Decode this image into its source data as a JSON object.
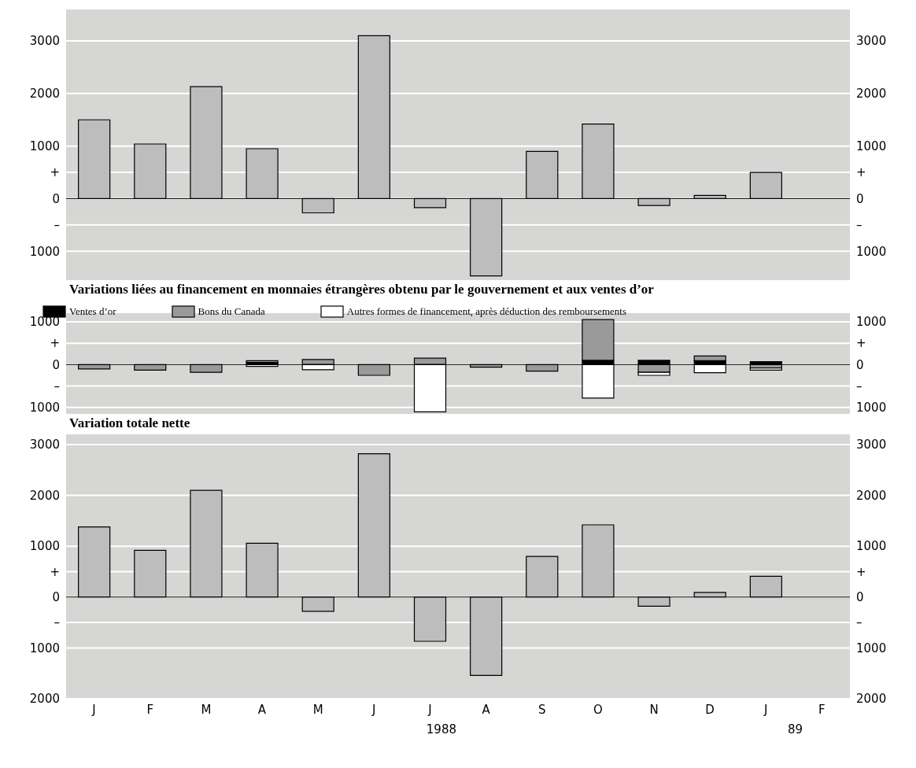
{
  "chart_data": [
    {
      "type": "bar",
      "categories": [
        null,
        null,
        null,
        null,
        null,
        null,
        null,
        null,
        null,
        null,
        null,
        null,
        null,
        null
      ],
      "series": [
        {
          "color": "#bdbdbd",
          "values": [
            1500,
            1040,
            2130,
            950,
            -270,
            3100,
            -170,
            -1470,
            900,
            1420,
            -130,
            60,
            500,
            null
          ]
        }
      ],
      "ylim": [
        -1550,
        3600
      ],
      "yticks": [
        {
          "value": -1000,
          "label": "1000"
        },
        {
          "value": -500,
          "label": "–"
        },
        0,
        {
          "value": 500,
          "label": "+"
        },
        1000,
        2000,
        3000
      ],
      "y2lim": [
        -1550,
        3600
      ],
      "y2ticks": [
        {
          "value": -1000,
          "label": "1000"
        },
        {
          "value": -500,
          "label": "–"
        },
        0,
        {
          "value": 500,
          "label": "+"
        },
        1000,
        2000,
        3000
      ],
      "grid": "y",
      "tick_labels": "y",
      "legend": false
    },
    {
      "type": "bar",
      "title": "Variations liées au financement en monnaies étrangères obtenu par le gouvernement et aux ventes d’or",
      "categories": [
        null,
        null,
        null,
        null,
        null,
        null,
        null,
        null,
        null,
        null,
        null,
        null,
        null,
        null
      ],
      "stacked": true,
      "series": [
        {
          "name": "Ventes d’or",
          "color": "#000000",
          "values": [
            0,
            0,
            0,
            50,
            0,
            0,
            0,
            0,
            0,
            100,
            100,
            90,
            70,
            null
          ]
        },
        {
          "name": "Bons du Canada",
          "color": "#9a9a9a",
          "values": [
            -100,
            -130,
            -180,
            40,
            120,
            -250,
            150,
            -60,
            -150,
            950,
            -180,
            110,
            -80,
            null
          ]
        },
        {
          "name": "Autres formes de financement, après déduction des remboursements",
          "color": "#ffffff",
          "values": [
            0,
            0,
            0,
            -40,
            -120,
            0,
            -1100,
            0,
            0,
            -780,
            -70,
            -190,
            -50,
            null
          ]
        }
      ],
      "ylim": [
        -1150,
        1200
      ],
      "yticks": [
        {
          "value": -1000,
          "label": "1000"
        },
        {
          "value": -500,
          "label": "–"
        },
        0,
        {
          "value": 500,
          "label": "+"
        },
        1000
      ],
      "y2lim": [
        -1150,
        1200
      ],
      "y2ticks": [
        {
          "value": -1000,
          "label": "1000"
        },
        {
          "value": -500,
          "label": "–"
        },
        0,
        {
          "value": 500,
          "label": "+"
        },
        1000
      ],
      "grid": "y",
      "tick_labels": "y",
      "legend": "top left"
    },
    {
      "type": "bar",
      "title": "Variation totale nette",
      "categories": [
        "J",
        "F",
        "M",
        "A",
        "M",
        "J",
        "J",
        "A",
        "S",
        "O",
        "N",
        "D",
        "J",
        "F"
      ],
      "series": [
        {
          "color": "#bdbdbd",
          "values": [
            1380,
            920,
            2100,
            1060,
            -280,
            2820,
            -870,
            -1540,
            800,
            1420,
            -180,
            90,
            410,
            null
          ]
        }
      ],
      "ylim": [
        -2000,
        3200
      ],
      "yticks": [
        {
          "value": -2000,
          "label": "2000"
        },
        {
          "value": -1000,
          "label": "1000"
        },
        {
          "value": -500,
          "label": "–"
        },
        0,
        {
          "value": 500,
          "label": "+"
        },
        1000,
        2000,
        3000
      ],
      "y2lim": [
        -2000,
        3200
      ],
      "y2ticks": [
        {
          "value": -2000,
          "label": "2000"
        },
        {
          "value": -1000,
          "label": "1000"
        },
        {
          "value": -500,
          "label": "–"
        },
        0,
        {
          "value": 500,
          "label": "+"
        },
        1000,
        2000,
        3000
      ],
      "grid": "y",
      "legend": false,
      "annotations": [
        "1988",
        "89"
      ]
    }
  ]
}
